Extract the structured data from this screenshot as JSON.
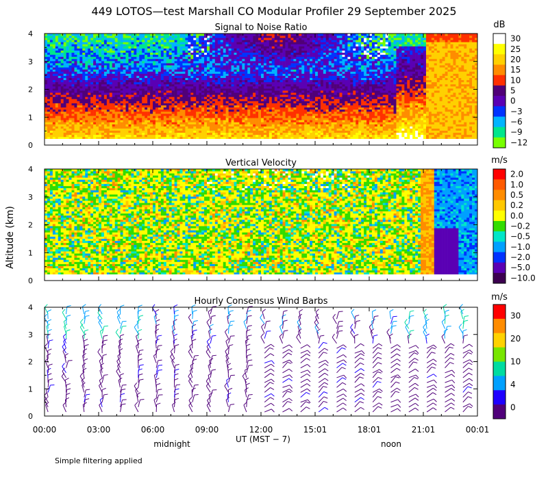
{
  "chart_data": {
    "type": "heatmap",
    "title": "449 LOTOS—test Marshall CO Modular Profiler 29 September 2025",
    "ylabel": "Altitude (km)",
    "xlabel": "UT  (MST − 7)",
    "x_tick_labels": [
      "00:00",
      "03:00",
      "06:00",
      "09:00",
      "12:00",
      "15:01",
      "18:01",
      "21:01",
      "00:01"
    ],
    "x_range_hours": [
      0,
      24
    ],
    "annotations": {
      "midnight": "midnight",
      "noon": "noon",
      "footnote": "Simple filtering applied"
    },
    "panels": [
      {
        "id": "snr",
        "title": "Signal to Noise Ratio",
        "unit": "dB",
        "ylim": [
          0,
          4
        ],
        "y_ticks": [
          0,
          1,
          2,
          3,
          4
        ],
        "y_tick_labels": [
          "0",
          "1",
          "2",
          "3",
          "4"
        ],
        "colorbar": {
          "labels": [
            "30",
            "25",
            "20",
            "15",
            "10",
            "5",
            "0",
            "−3",
            "−6",
            "−9",
            "−12"
          ],
          "colors": [
            "#ffffff",
            "#ffff00",
            "#ffd000",
            "#ff8c00",
            "#ff3000",
            "#500078",
            "#5a00b4",
            "#0033ff",
            "#00b4ff",
            "#00e68c",
            "#78ff00"
          ]
        },
        "description": "High SNR near ground (orange/red), decreasing aloft to purple/blue, green and white near 3-4 km; orange high-SNR column after 21 UT"
      },
      {
        "id": "vv",
        "title": "Vertical Velocity",
        "unit": "m/s",
        "ylim": [
          0,
          4
        ],
        "y_ticks": [
          0,
          1,
          2,
          3,
          4
        ],
        "y_tick_labels": [
          "0",
          "1",
          "2",
          "3",
          "4"
        ],
        "colorbar": {
          "labels": [
            "2.0",
            "1.0",
            "0.5",
            "0.2",
            "0.0",
            "−0.2",
            "−0.5",
            "−1.0",
            "−2.0",
            "−5.0",
            "−10.0"
          ],
          "colors": [
            "#ff0000",
            "#ff5a00",
            "#ff8c00",
            "#ffc800",
            "#ffff00",
            "#32dc00",
            "#00e6c8",
            "#00a0ff",
            "#0032ff",
            "#5a00b4",
            "#3c0050"
          ]
        },
        "description": "Mostly near-zero velocities (yellow/green), blue and purple downward region after 21 UT"
      },
      {
        "id": "wind",
        "title": "Hourly Consensus Wind Barbs",
        "unit": "m/s",
        "ylim": [
          0,
          4
        ],
        "y_ticks": [
          0,
          1,
          2,
          3,
          4
        ],
        "y_tick_labels": [
          "0",
          "1",
          "2",
          "3",
          "4"
        ],
        "colorbar": {
          "labels": [
            "30",
            "20",
            "10",
            "4",
            "0"
          ],
          "colors": [
            "#ff0000",
            "#ff8c00",
            "#ffd200",
            "#78e600",
            "#00dca0",
            "#00a0ff",
            "#1e00ff",
            "#50007a"
          ]
        },
        "description": "Hourly wind barbs from 0 to 4 km; mostly weak winds (purple), stronger (cyan/green) aloft"
      }
    ]
  }
}
